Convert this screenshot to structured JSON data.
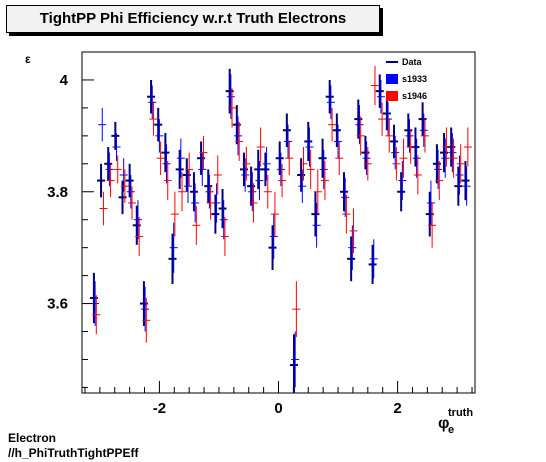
{
  "title": "TightPP Phi Efficiency w.r.t Truth Electrons",
  "footer": {
    "line1": "Electron",
    "line2": "//h_PhiTruthTightPPEff"
  },
  "colors": {
    "data": "#000080",
    "s1933": "#0000ff",
    "s1946": "#ff0000"
  },
  "chart_data": {
    "type": "scatter",
    "title": "TightPP Phi Efficiency w.r.t Truth Electrons",
    "xlabel_main": "φ",
    "xlabel_sub": "e",
    "xlabel_sup": "truth",
    "ylabel": "ε",
    "xlim": [
      -3.3,
      3.3
    ],
    "ylim": [
      3.44,
      4.05
    ],
    "xticks": [
      {
        "v": -2,
        "label": "-2"
      },
      {
        "v": 0,
        "label": "0"
      },
      {
        "v": 2,
        "label": "2"
      }
    ],
    "yticks": [
      {
        "v": 3.6,
        "label": "3.6"
      },
      {
        "v": 3.8,
        "label": "3.8"
      },
      {
        "v": 4.0,
        "label": "4"
      }
    ],
    "legend": [
      {
        "name": "Data",
        "style": "line",
        "color": "#000080"
      },
      {
        "name": "s1933",
        "style": "box",
        "color": "#0000ff"
      },
      {
        "name": "s1946",
        "style": "box",
        "color": "#ff0000"
      }
    ],
    "legend_position": "top-right",
    "grid": false,
    "series": [
      {
        "name": "Data",
        "color": "#000080",
        "x": [
          -3.1,
          -2.98,
          -2.86,
          -2.74,
          -2.62,
          -2.5,
          -2.38,
          -2.26,
          -2.14,
          -2.02,
          -1.9,
          -1.78,
          -1.66,
          -1.54,
          -1.42,
          -1.3,
          -1.18,
          -1.06,
          -0.94,
          -0.82,
          -0.7,
          -0.58,
          -0.46,
          -0.34,
          -0.22,
          -0.1,
          0.02,
          0.14,
          0.26,
          0.38,
          0.5,
          0.62,
          0.74,
          0.86,
          0.98,
          1.1,
          1.22,
          1.34,
          1.46,
          1.58,
          1.7,
          1.82,
          1.94,
          2.06,
          2.18,
          2.3,
          2.42,
          2.54,
          2.66,
          2.78,
          2.9,
          3.02,
          3.14
        ],
        "y": [
          3.61,
          3.82,
          3.85,
          3.9,
          3.79,
          3.82,
          3.74,
          3.6,
          3.97,
          3.92,
          3.87,
          3.68,
          3.84,
          3.83,
          3.8,
          3.86,
          3.81,
          3.76,
          3.77,
          3.98,
          3.92,
          3.84,
          3.81,
          3.84,
          3.84,
          3.7,
          3.86,
          3.91,
          3.49,
          3.83,
          3.89,
          3.76,
          3.86,
          3.97,
          3.91,
          3.8,
          3.68,
          3.93,
          3.87,
          3.67,
          3.98,
          3.94,
          3.89,
          3.8,
          3.91,
          3.88,
          3.93,
          3.76,
          3.85,
          3.87,
          3.88,
          3.81,
          3.82
        ],
        "err": [
          0.045,
          0.03,
          0.03,
          0.025,
          0.03,
          0.03,
          0.035,
          0.04,
          0.03,
          0.03,
          0.035,
          0.045,
          0.035,
          0.03,
          0.035,
          0.03,
          0.03,
          0.035,
          0.035,
          0.04,
          0.035,
          0.03,
          0.035,
          0.035,
          0.03,
          0.04,
          0.03,
          0.03,
          0.055,
          0.03,
          0.035,
          0.04,
          0.035,
          0.03,
          0.03,
          0.035,
          0.04,
          0.035,
          0.03,
          0.035,
          0.03,
          0.03,
          0.03,
          0.035,
          0.03,
          0.035,
          0.03,
          0.04,
          0.035,
          0.035,
          0.035,
          0.035,
          0.035
        ]
      },
      {
        "name": "s1933",
        "color": "#0000ff",
        "x": [
          -3.08,
          -2.96,
          -2.84,
          -2.72,
          -2.6,
          -2.48,
          -2.36,
          -2.24,
          -2.12,
          -2.0,
          -1.88,
          -1.76,
          -1.64,
          -1.52,
          -1.4,
          -1.28,
          -1.16,
          -1.04,
          -0.92,
          -0.8,
          -0.68,
          -0.56,
          -0.44,
          -0.32,
          -0.2,
          -0.08,
          0.04,
          0.16,
          0.28,
          0.4,
          0.52,
          0.64,
          0.76,
          0.88,
          1.0,
          1.12,
          1.24,
          1.36,
          1.48,
          1.6,
          1.72,
          1.84,
          1.96,
          2.08,
          2.2,
          2.32,
          2.44,
          2.56,
          2.68,
          2.8,
          2.92,
          3.04,
          3.16
        ],
        "y": [
          3.6,
          3.92,
          3.84,
          3.88,
          3.83,
          3.8,
          3.75,
          3.59,
          3.96,
          3.9,
          3.85,
          3.7,
          3.86,
          3.81,
          3.78,
          3.84,
          3.8,
          3.78,
          3.75,
          3.97,
          3.9,
          3.83,
          3.8,
          3.82,
          3.85,
          3.72,
          3.84,
          3.89,
          3.5,
          3.81,
          3.88,
          3.74,
          3.84,
          3.96,
          3.89,
          3.79,
          3.7,
          3.92,
          3.86,
          3.68,
          3.97,
          3.93,
          3.87,
          3.82,
          3.9,
          3.86,
          3.91,
          3.78,
          3.84,
          3.86,
          3.87,
          3.83,
          3.81
        ],
        "err": [
          0.04,
          0.03,
          0.03,
          0.025,
          0.03,
          0.03,
          0.035,
          0.04,
          0.03,
          0.03,
          0.035,
          0.045,
          0.035,
          0.03,
          0.035,
          0.03,
          0.03,
          0.035,
          0.035,
          0.04,
          0.035,
          0.03,
          0.035,
          0.035,
          0.03,
          0.04,
          0.03,
          0.03,
          0.05,
          0.03,
          0.035,
          0.04,
          0.035,
          0.03,
          0.03,
          0.035,
          0.04,
          0.035,
          0.03,
          0.035,
          0.03,
          0.03,
          0.03,
          0.035,
          0.03,
          0.035,
          0.03,
          0.04,
          0.035,
          0.035,
          0.035,
          0.035,
          0.035
        ]
      },
      {
        "name": "s1946",
        "color": "#ff0000",
        "x": [
          -3.06,
          -2.94,
          -2.82,
          -2.7,
          -2.58,
          -2.46,
          -2.34,
          -2.22,
          -2.1,
          -1.98,
          -1.86,
          -1.74,
          -1.62,
          -1.5,
          -1.38,
          -1.26,
          -1.14,
          -1.02,
          -0.9,
          -0.78,
          -0.66,
          -0.54,
          -0.42,
          -0.3,
          -0.18,
          -0.06,
          0.06,
          0.18,
          0.3,
          0.42,
          0.54,
          0.66,
          0.78,
          0.9,
          1.02,
          1.14,
          1.26,
          1.38,
          1.5,
          1.62,
          1.74,
          1.86,
          1.98,
          2.1,
          2.22,
          2.34,
          2.46,
          2.58,
          2.7,
          2.82,
          2.94,
          3.06,
          3.18
        ],
        "y": [
          3.58,
          3.77,
          3.82,
          3.84,
          3.81,
          3.78,
          3.72,
          3.57,
          3.93,
          3.86,
          3.82,
          3.76,
          3.8,
          3.84,
          3.74,
          3.87,
          3.78,
          3.83,
          3.72,
          3.95,
          3.89,
          3.85,
          3.78,
          3.88,
          3.8,
          3.76,
          3.82,
          3.86,
          3.59,
          3.85,
          3.84,
          3.8,
          3.82,
          3.92,
          3.86,
          3.76,
          3.73,
          3.9,
          3.85,
          3.99,
          3.93,
          3.9,
          3.85,
          3.86,
          3.88,
          3.83,
          3.9,
          3.74,
          3.82,
          3.88,
          3.86,
          3.85,
          3.88
        ],
        "err": [
          0.035,
          0.03,
          0.03,
          0.025,
          0.03,
          0.03,
          0.035,
          0.04,
          0.03,
          0.03,
          0.035,
          0.04,
          0.035,
          0.03,
          0.035,
          0.03,
          0.03,
          0.035,
          0.035,
          0.035,
          0.035,
          0.03,
          0.035,
          0.035,
          0.03,
          0.04,
          0.03,
          0.03,
          0.05,
          0.03,
          0.035,
          0.04,
          0.035,
          0.03,
          0.03,
          0.035,
          0.04,
          0.035,
          0.03,
          0.035,
          0.03,
          0.03,
          0.03,
          0.035,
          0.03,
          0.035,
          0.03,
          0.04,
          0.035,
          0.035,
          0.035,
          0.035,
          0.035
        ]
      }
    ]
  }
}
